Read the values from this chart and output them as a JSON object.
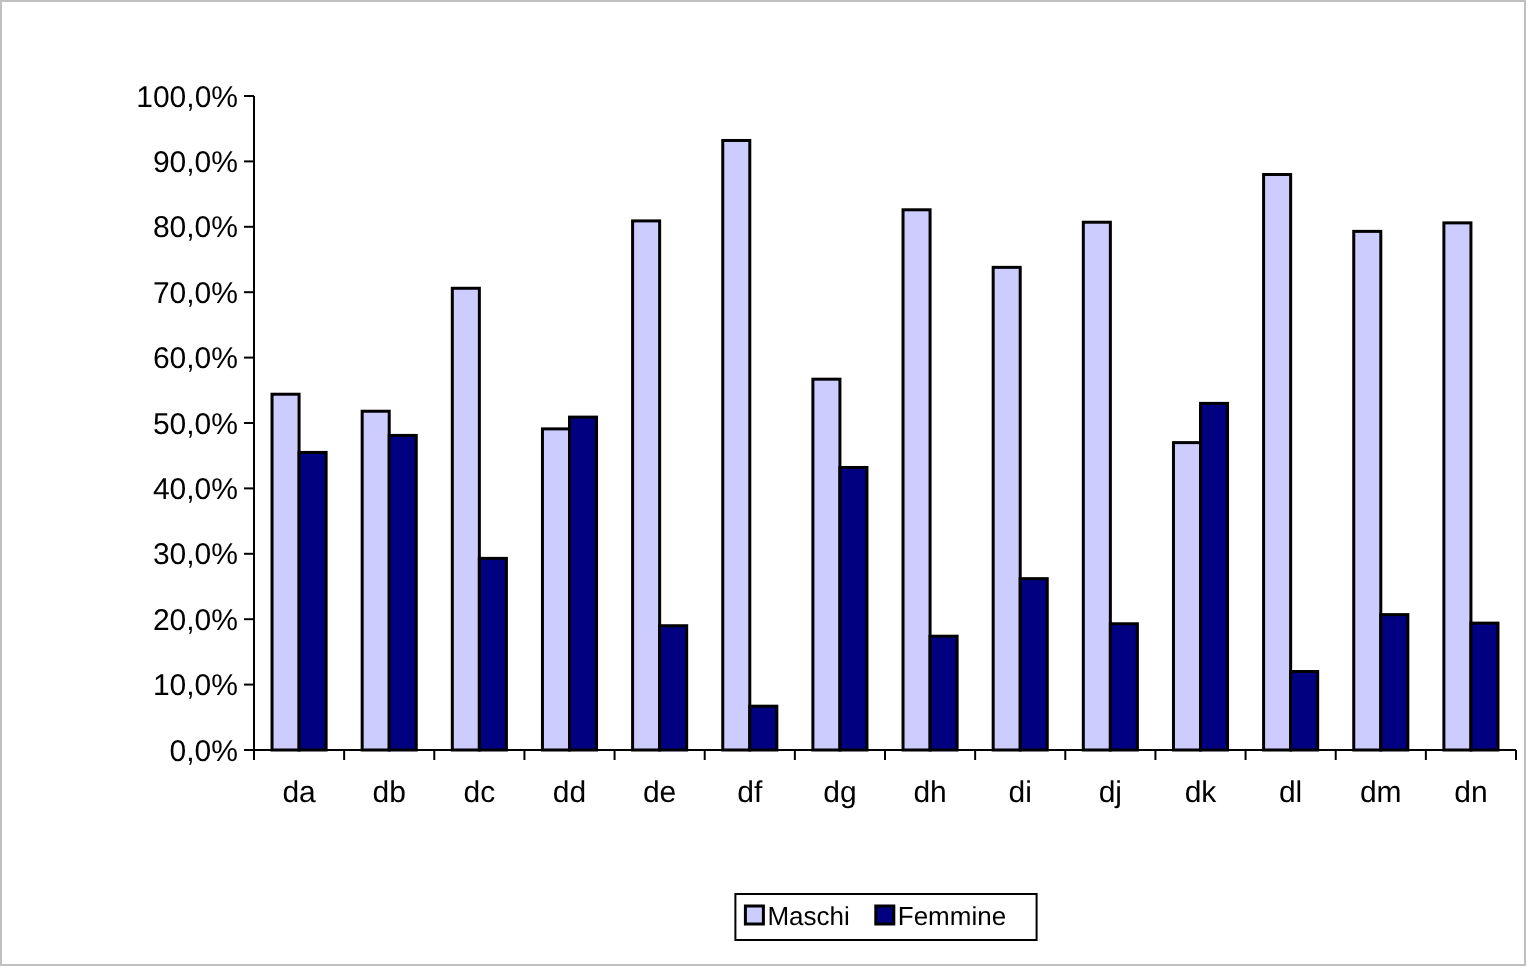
{
  "chart_data": {
    "type": "bar",
    "categories": [
      "da",
      "db",
      "dc",
      "dd",
      "de",
      "df",
      "dg",
      "dh",
      "di",
      "dj",
      "dk",
      "dl",
      "dm",
      "dn"
    ],
    "series": [
      {
        "name": "Maschi",
        "color": "#ccccff",
        "values": [
          54.4,
          51.8,
          70.6,
          49.1,
          80.9,
          93.2,
          56.7,
          82.6,
          73.8,
          80.7,
          47.0,
          88.0,
          79.3,
          80.6
        ]
      },
      {
        "name": "Femmine",
        "color": "#000080",
        "values": [
          45.5,
          48.1,
          29.3,
          50.9,
          19.0,
          6.7,
          43.2,
          17.4,
          26.2,
          19.3,
          53.0,
          12.0,
          20.7,
          19.4
        ]
      }
    ],
    "ylim": [
      0,
      100
    ],
    "yticks": [
      {
        "value": 0,
        "label": "0,0%"
      },
      {
        "value": 10,
        "label": "10,0%"
      },
      {
        "value": 20,
        "label": "20,0%"
      },
      {
        "value": 30,
        "label": "30,0%"
      },
      {
        "value": 40,
        "label": "40,0%"
      },
      {
        "value": 50,
        "label": "50,0%"
      },
      {
        "value": 60,
        "label": "60,0%"
      },
      {
        "value": 70,
        "label": "70,0%"
      },
      {
        "value": 80,
        "label": "80,0%"
      },
      {
        "value": 90,
        "label": "90,0%"
      },
      {
        "value": 100,
        "label": "100,0%"
      }
    ],
    "legend": "bottom",
    "grid": false
  }
}
